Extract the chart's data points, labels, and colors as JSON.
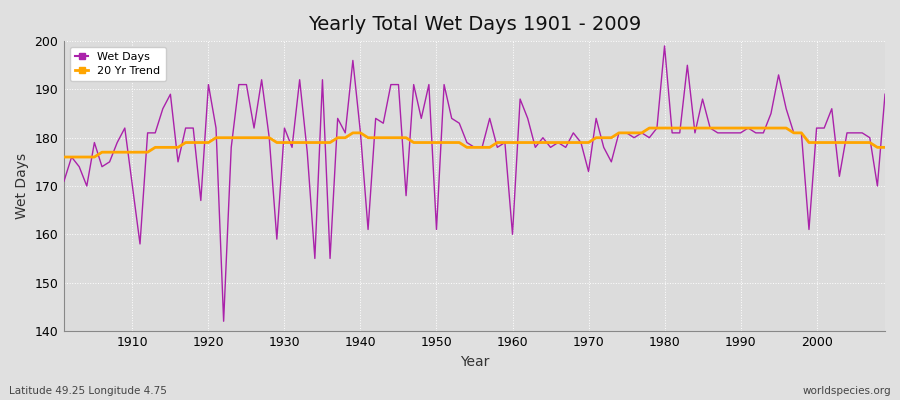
{
  "title": "Yearly Total Wet Days 1901 - 2009",
  "xlabel": "Year",
  "ylabel": "Wet Days",
  "lat_lon_label": "Latitude 49.25 Longitude 4.75",
  "source_label": "worldspecies.org",
  "xlim": [
    1901,
    2009
  ],
  "ylim": [
    140,
    200
  ],
  "yticks": [
    140,
    150,
    160,
    170,
    180,
    190,
    200
  ],
  "xticks": [
    1910,
    1920,
    1930,
    1940,
    1950,
    1960,
    1970,
    1980,
    1990,
    2000
  ],
  "wet_days_color": "#AA22AA",
  "trend_color": "#FFA500",
  "fig_bg_color": "#E0E0E0",
  "plot_bg_color": "#DCDCDC",
  "years": [
    1901,
    1902,
    1903,
    1904,
    1905,
    1906,
    1907,
    1908,
    1909,
    1910,
    1911,
    1912,
    1913,
    1914,
    1915,
    1916,
    1917,
    1918,
    1919,
    1920,
    1921,
    1922,
    1923,
    1924,
    1925,
    1926,
    1927,
    1928,
    1929,
    1930,
    1931,
    1932,
    1933,
    1934,
    1935,
    1936,
    1937,
    1938,
    1939,
    1940,
    1941,
    1942,
    1943,
    1944,
    1945,
    1946,
    1947,
    1948,
    1949,
    1950,
    1951,
    1952,
    1953,
    1954,
    1955,
    1956,
    1957,
    1958,
    1959,
    1960,
    1961,
    1962,
    1963,
    1964,
    1965,
    1966,
    1967,
    1968,
    1969,
    1970,
    1971,
    1972,
    1973,
    1974,
    1975,
    1976,
    1977,
    1978,
    1979,
    1980,
    1981,
    1982,
    1983,
    1984,
    1985,
    1986,
    1987,
    1988,
    1989,
    1990,
    1991,
    1992,
    1993,
    1994,
    1995,
    1996,
    1997,
    1998,
    1999,
    2000,
    2001,
    2002,
    2003,
    2004,
    2005,
    2006,
    2007,
    2008,
    2009
  ],
  "wet_days": [
    171,
    176,
    174,
    170,
    179,
    174,
    175,
    179,
    182,
    170,
    158,
    181,
    181,
    186,
    189,
    175,
    182,
    182,
    167,
    191,
    182,
    142,
    178,
    191,
    191,
    182,
    192,
    180,
    159,
    182,
    178,
    192,
    177,
    155,
    192,
    155,
    184,
    181,
    196,
    181,
    161,
    184,
    183,
    191,
    191,
    168,
    191,
    184,
    191,
    161,
    191,
    184,
    183,
    179,
    178,
    178,
    184,
    178,
    179,
    160,
    188,
    184,
    178,
    180,
    178,
    179,
    178,
    181,
    179,
    173,
    184,
    178,
    175,
    181,
    181,
    180,
    181,
    180,
    182,
    199,
    181,
    181,
    195,
    181,
    188,
    182,
    181,
    181,
    181,
    181,
    182,
    181,
    181,
    185,
    193,
    186,
    181,
    181,
    161,
    182,
    182,
    186,
    172,
    181,
    181,
    181,
    180,
    170,
    189
  ],
  "trend": [
    176,
    176,
    176,
    176,
    176,
    177,
    177,
    177,
    177,
    177,
    177,
    177,
    178,
    178,
    178,
    178,
    179,
    179,
    179,
    179,
    180,
    180,
    180,
    180,
    180,
    180,
    180,
    180,
    179,
    179,
    179,
    179,
    179,
    179,
    179,
    179,
    180,
    180,
    181,
    181,
    180,
    180,
    180,
    180,
    180,
    180,
    179,
    179,
    179,
    179,
    179,
    179,
    179,
    178,
    178,
    178,
    178,
    179,
    179,
    179,
    179,
    179,
    179,
    179,
    179,
    179,
    179,
    179,
    179,
    179,
    180,
    180,
    180,
    181,
    181,
    181,
    181,
    182,
    182,
    182,
    182,
    182,
    182,
    182,
    182,
    182,
    182,
    182,
    182,
    182,
    182,
    182,
    182,
    182,
    182,
    182,
    181,
    181,
    179,
    179,
    179,
    179,
    179,
    179,
    179,
    179,
    179,
    178,
    178
  ]
}
